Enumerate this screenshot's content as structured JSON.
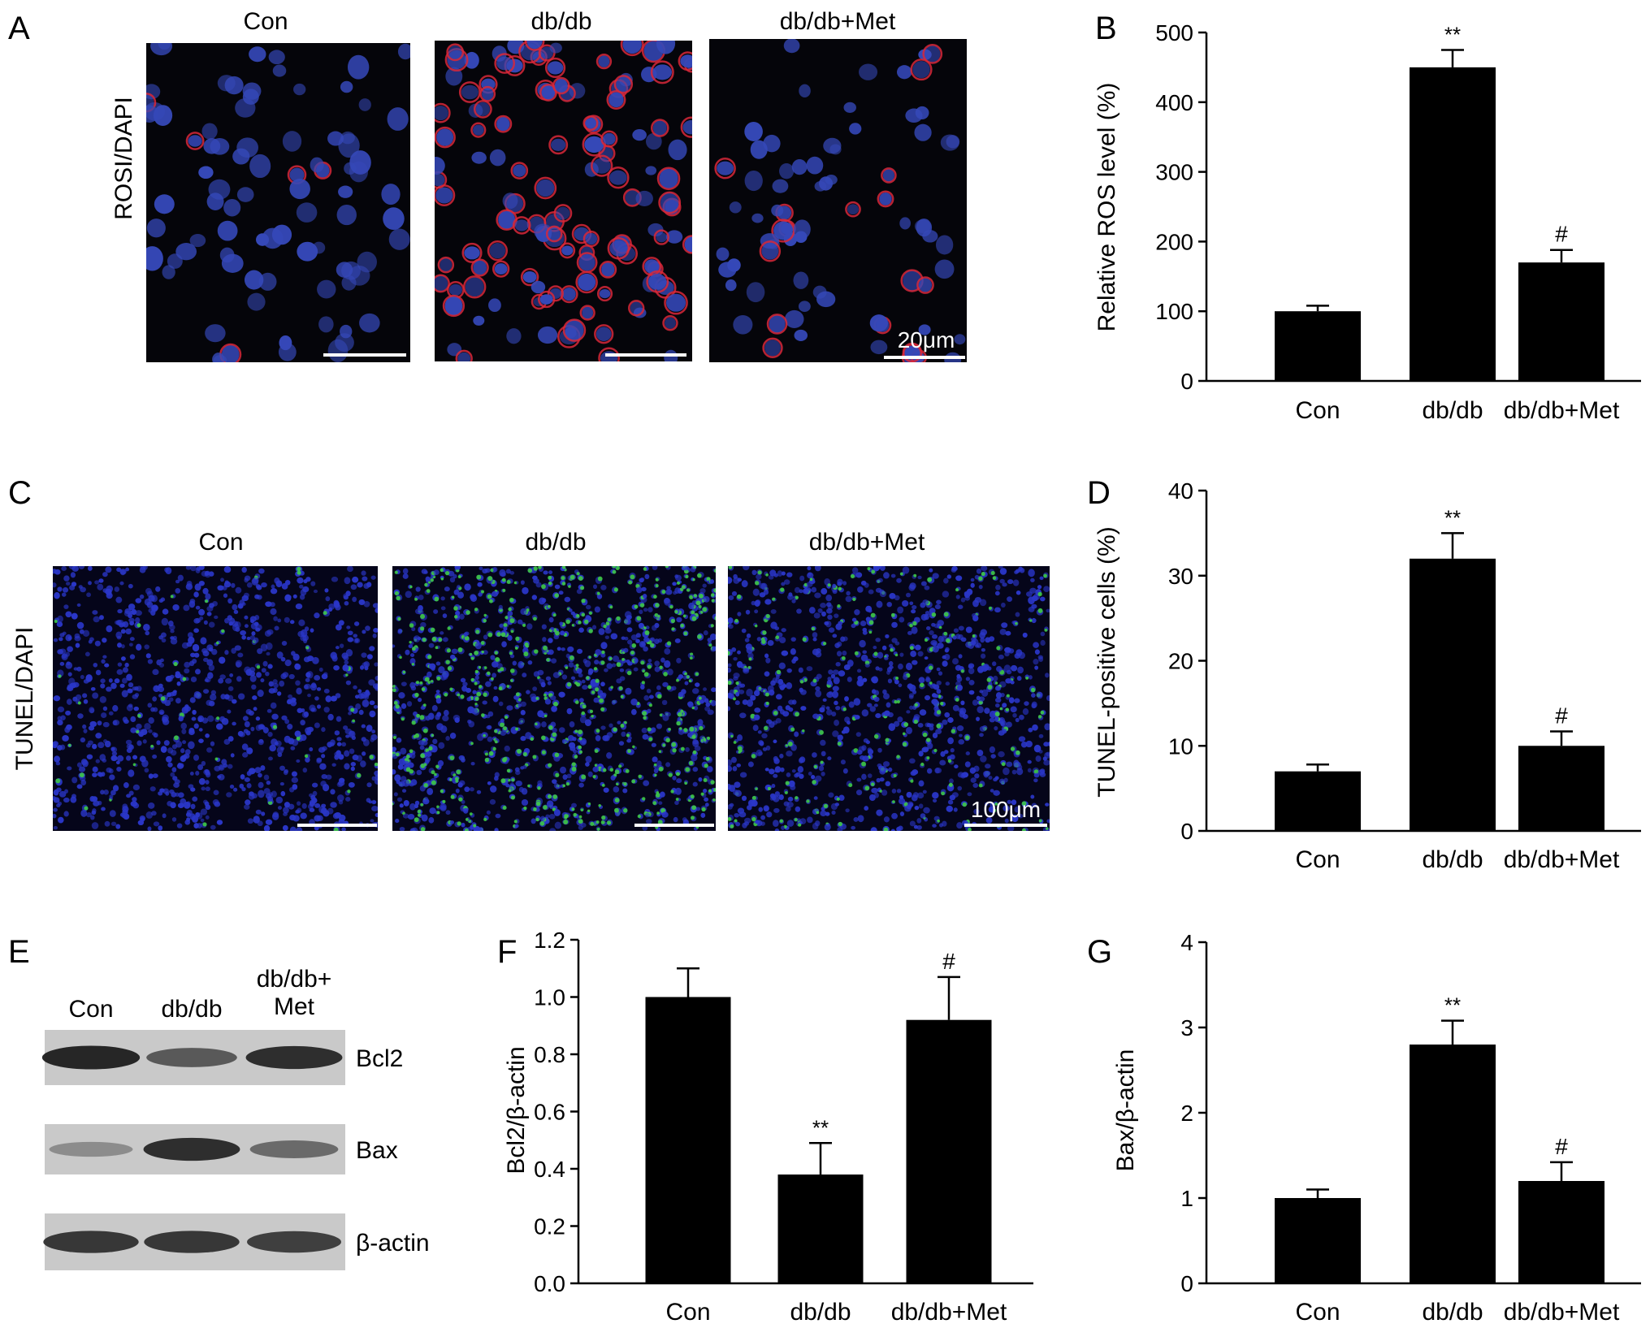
{
  "panels": {
    "A": {
      "letter": "A",
      "stain_label": "ROSI/DAPI",
      "groups": [
        "Con",
        "db/db",
        "db/db+Met"
      ],
      "scale_bar": "20μm",
      "image_colors": {
        "background": "#05050a",
        "nucleus": "#3548b8",
        "signal": "#d8283a"
      }
    },
    "C": {
      "letter": "C",
      "stain_label": "TUNEL/DAPI",
      "groups": [
        "Con",
        "db/db",
        "db/db+Met"
      ],
      "scale_bar": "100μm",
      "image_colors": {
        "background": "#05051a",
        "nucleus": "#2a36c8",
        "signal": "#3fd23f"
      }
    },
    "E": {
      "letter": "E",
      "lanes": [
        "Con",
        "db/db",
        "db/db+\nMet"
      ],
      "bands": [
        {
          "label": "Bcl2",
          "intensity": [
            0.95,
            0.65,
            0.9
          ]
        },
        {
          "label": "Bax",
          "intensity": [
            0.35,
            0.9,
            0.55
          ]
        },
        {
          "label": "β-actin",
          "intensity": [
            0.85,
            0.85,
            0.8
          ]
        }
      ]
    }
  },
  "chart_data": [
    {
      "id": "B",
      "letter": "B",
      "type": "bar",
      "categories": [
        "Con",
        "db/db",
        "db/db+Met"
      ],
      "values": [
        100,
        450,
        170
      ],
      "errors": [
        8,
        25,
        18
      ],
      "annotations": [
        "",
        "**",
        "#"
      ],
      "ylabel": "Relative ROS level (%)",
      "ylim": [
        0,
        500
      ],
      "yticks": [
        0,
        100,
        200,
        300,
        400,
        500
      ],
      "ytick_labels": [
        "0",
        "100",
        "200",
        "300",
        "400",
        "500"
      ],
      "bar_color": "#000000"
    },
    {
      "id": "D",
      "letter": "D",
      "type": "bar",
      "categories": [
        "Con",
        "db/db",
        "db/db+Met"
      ],
      "values": [
        7,
        32,
        10
      ],
      "errors": [
        0.8,
        3.0,
        1.7
      ],
      "annotations": [
        "",
        "**",
        "#"
      ],
      "ylabel": "TUNEL-positive cells (%)",
      "ylim": [
        0,
        40
      ],
      "yticks": [
        0,
        10,
        20,
        30,
        40
      ],
      "ytick_labels": [
        "0",
        "10",
        "20",
        "30",
        "40"
      ],
      "bar_color": "#000000"
    },
    {
      "id": "F",
      "letter": "F",
      "type": "bar",
      "categories": [
        "Con",
        "db/db",
        "db/db+Met"
      ],
      "values": [
        1.0,
        0.38,
        0.92
      ],
      "errors": [
        0.1,
        0.11,
        0.15
      ],
      "annotations": [
        "",
        "**",
        "#"
      ],
      "ylabel": "Bcl2/β-actin",
      "ylim": [
        0,
        1.2
      ],
      "yticks": [
        0,
        0.2,
        0.4,
        0.6,
        0.8,
        1.0,
        1.2
      ],
      "ytick_labels": [
        "0.0",
        "0.2",
        "0.4",
        "0.6",
        "0.8",
        "1.0",
        "1.2"
      ],
      "bar_color": "#000000"
    },
    {
      "id": "G",
      "letter": "G",
      "type": "bar",
      "categories": [
        "Con",
        "db/db",
        "db/db+Met"
      ],
      "values": [
        1.0,
        2.8,
        1.2
      ],
      "errors": [
        0.1,
        0.28,
        0.22
      ],
      "annotations": [
        "",
        "**",
        "#"
      ],
      "ylabel": "Bax/β-actin",
      "ylim": [
        0,
        4
      ],
      "yticks": [
        0,
        1,
        2,
        3,
        4
      ],
      "ytick_labels": [
        "0",
        "1",
        "2",
        "3",
        "4"
      ],
      "bar_color": "#000000"
    }
  ]
}
